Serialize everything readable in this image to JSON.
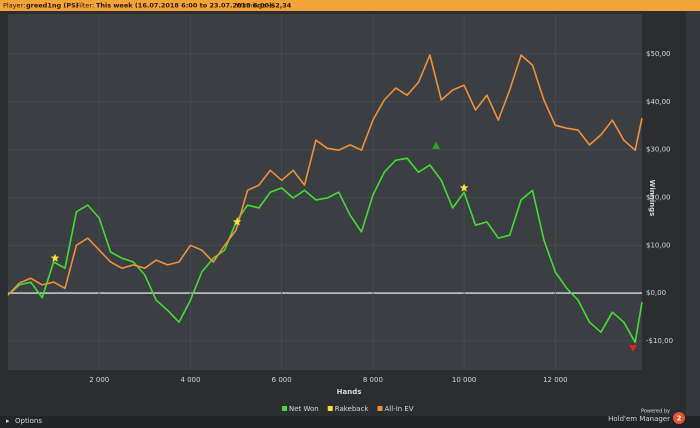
{
  "header": {
    "player_label": "Player:",
    "player": "greed1ng (PS)",
    "filter_label": "Filter:",
    "filter": "This week (16.07.2018 6:00 to 23.07.2018 6:00)",
    "winnings_label": "Winnings:",
    "winnings": "-$2,34"
  },
  "footer": {
    "options": "Options",
    "powered_by": "Powered by",
    "product": "Hold'em Manager",
    "version": "2"
  },
  "chart_data": {
    "type": "line",
    "x_label": "Hands",
    "y_label": "Winnings",
    "grid": true,
    "x": [
      0,
      250,
      500,
      750,
      1000,
      1250,
      1500,
      1750,
      2000,
      2250,
      2500,
      2750,
      3000,
      3250,
      3500,
      3750,
      4000,
      4250,
      4500,
      4750,
      5000,
      5250,
      5500,
      5750,
      6000,
      6250,
      6500,
      6750,
      7000,
      7250,
      7500,
      7750,
      8000,
      8250,
      8500,
      8750,
      9000,
      9250,
      9500,
      9750,
      10000,
      10250,
      10500,
      10750,
      11000,
      11250,
      11500,
      11750,
      12000,
      12250,
      12500,
      12750,
      13000,
      13250,
      13500,
      13750,
      13900
    ],
    "series": [
      {
        "name": "Net Won",
        "color": "#44dd33",
        "values": [
          -0.4,
          1.7,
          2.3,
          -1,
          6.5,
          5.2,
          17,
          18.4,
          15.7,
          8.6,
          7.3,
          6.5,
          3.8,
          -1.5,
          -3.6,
          -6.1,
          -1.5,
          4.4,
          7.3,
          9,
          14.9,
          18.4,
          17.8,
          21.1,
          22,
          19.9,
          21.5,
          19.5,
          19.9,
          21.1,
          16.3,
          12.8,
          20.5,
          25.3,
          27.8,
          28.2,
          25.3,
          26.8,
          23.6,
          17.8,
          21.1,
          14.2,
          14.9,
          11.5,
          12.1,
          19.5,
          21.5,
          11.1,
          4.4,
          1,
          -1.5,
          -6.1,
          -8.2,
          -4,
          -6.1,
          -10.3,
          -1.9
        ]
      },
      {
        "name": "Rakeback",
        "color": "#f0e040",
        "values": [
          null,
          null,
          null,
          null,
          null,
          null,
          null,
          null,
          null,
          null,
          null,
          null,
          null,
          null,
          null,
          null,
          null,
          null,
          null,
          null,
          null,
          null,
          null,
          null,
          null,
          null,
          null,
          null,
          null,
          null,
          null,
          null,
          null,
          null,
          null,
          null,
          null,
          null,
          null,
          null,
          null,
          null,
          null,
          null,
          null,
          null,
          null,
          null,
          null,
          null,
          null,
          null,
          null,
          null,
          null,
          null,
          null
        ]
      },
      {
        "name": "All-In EV",
        "color": "#f0903a",
        "values": [
          -0.4,
          2.1,
          3.1,
          1.7,
          2.3,
          1,
          10,
          11.5,
          9,
          6.5,
          5.2,
          5.9,
          5.2,
          6.9,
          5.9,
          6.5,
          10,
          9,
          6.5,
          10,
          13.2,
          21.5,
          22.6,
          25.7,
          23.6,
          25.7,
          22.6,
          32,
          30.3,
          29.9,
          31,
          29.9,
          36.2,
          40.4,
          42.9,
          41.4,
          44.1,
          49.8,
          40.4,
          42.5,
          43.5,
          38.3,
          41.4,
          36.2,
          42.5,
          49.8,
          47.7,
          40.4,
          35.1,
          34.5,
          34.1,
          31,
          33.1,
          36.2,
          32,
          29.9,
          36.6
        ]
      }
    ],
    "markers": [
      {
        "x": 1031,
        "y": 7.3,
        "color": "#f0e040",
        "shape": "star"
      },
      {
        "x": 5022,
        "y": 14.9,
        "color": "#f0e040",
        "shape": "star"
      },
      {
        "x": 10000,
        "y": 22,
        "color": "#f0e040",
        "shape": "star"
      },
      {
        "x": 9386,
        "y": 30.8,
        "color": "#22aa22",
        "shape": "triangle-up"
      },
      {
        "x": 13706,
        "y": -11.5,
        "color": "#dd2222",
        "shape": "triangle-down"
      }
    ],
    "xlim": [
      0,
      13900
    ],
    "ylim": [
      -16.1,
      58.4
    ],
    "xticks": [
      {
        "value": 2000,
        "label": "2 000"
      },
      {
        "value": 4000,
        "label": "4 000"
      },
      {
        "value": 6000,
        "label": "6 000"
      },
      {
        "value": 8000,
        "label": "8 000"
      },
      {
        "value": 10000,
        "label": "10 000"
      },
      {
        "value": 12000,
        "label": "12 000"
      }
    ],
    "yticks": [
      {
        "value": -10,
        "label": "-$10,00"
      },
      {
        "value": 0,
        "label": "$0,00"
      },
      {
        "value": 10,
        "label": "$10,00"
      },
      {
        "value": 20,
        "label": "$20,00"
      },
      {
        "value": 30,
        "label": "$30,00"
      },
      {
        "value": 40,
        "label": "$40,00"
      },
      {
        "value": 50,
        "label": "$50,00"
      }
    ]
  }
}
